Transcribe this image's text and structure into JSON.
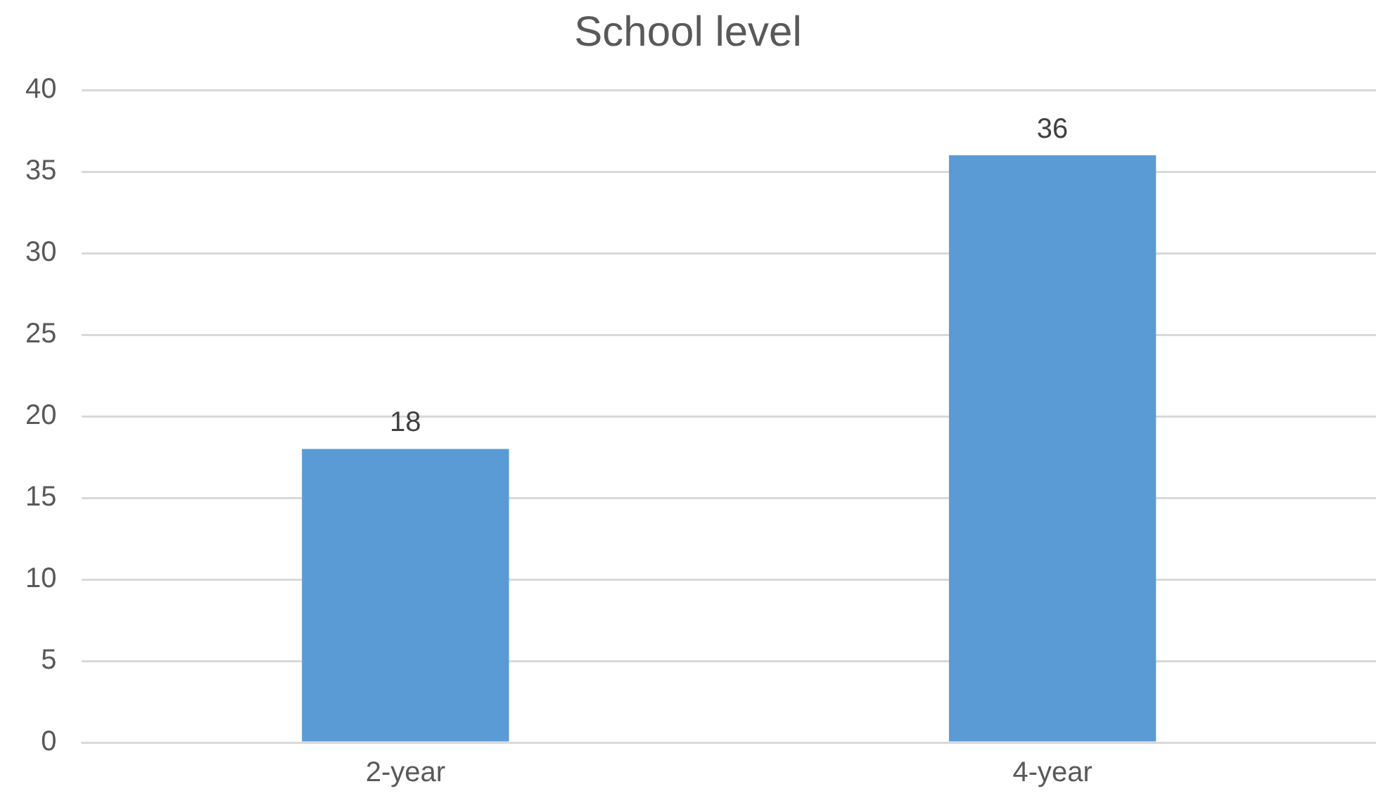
{
  "chart_data": {
    "type": "bar",
    "title": "School level",
    "categories": [
      "2-year",
      "4-year"
    ],
    "values": [
      18,
      36
    ],
    "color": "#5b9bd5",
    "ylim": [
      0,
      40
    ],
    "yticks": [
      0,
      5,
      10,
      15,
      20,
      25,
      30,
      35,
      40
    ],
    "grid": "y",
    "data_labels": true,
    "legend": false
  }
}
